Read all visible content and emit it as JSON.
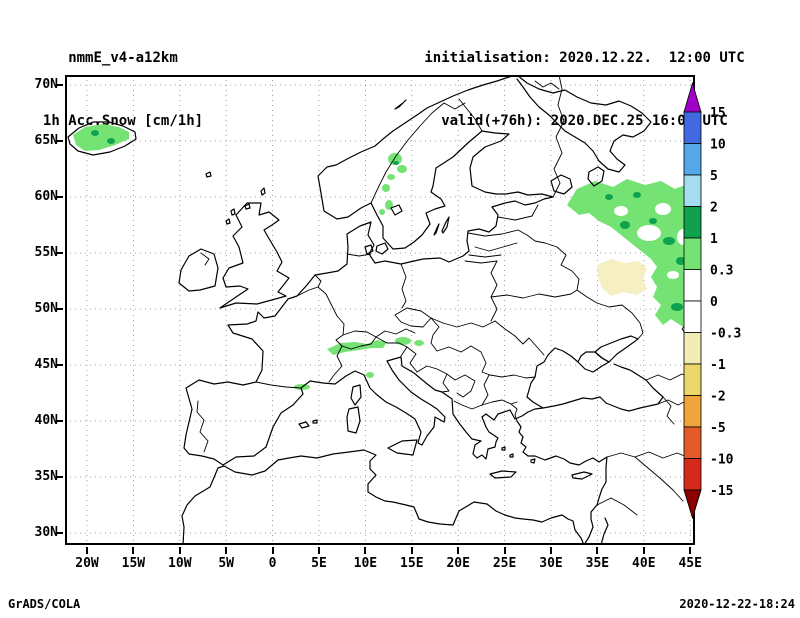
{
  "header": {
    "model": "nmmE_v4-a12km",
    "field": "1h Acc.Snow [cm/1h]",
    "init_line": "initialisation: 2020.12.22.  12:00 UTC",
    "valid_line": "valid(+76h): 2020.DEC.25 16:00 UTC"
  },
  "footer": {
    "left": "GrADS/COLA",
    "right": "2020-12-22-18:24"
  },
  "axes": {
    "lat_ticks": [
      "70N",
      "65N",
      "60N",
      "55N",
      "50N",
      "45N",
      "40N",
      "35N",
      "30N"
    ],
    "lon_ticks": [
      "20W",
      "15W",
      "10W",
      "5W",
      "0",
      "5E",
      "10E",
      "15E",
      "20E",
      "25E",
      "30E",
      "35E",
      "40E",
      "45E"
    ]
  },
  "colorbar": {
    "labels": [
      "15",
      "10",
      "5",
      "2",
      "1",
      "0.3",
      "0",
      "-0.3",
      "-1",
      "-2",
      "-5",
      "-10",
      "-15"
    ],
    "segment_colors": [
      "#4169E1",
      "#55A8E8",
      "#A6DCF2",
      "#0FA14E",
      "#74E374",
      "#FFFFFF",
      "#FFFFFF",
      "#F2EDB6",
      "#EDD76A",
      "#F0A43C",
      "#E55B28",
      "#D42A1C"
    ],
    "arrow_top_color": "#A000C8",
    "arrow_bottom_color": "#8B0000"
  },
  "chart_data": {
    "type": "heatmap",
    "title": "1h Acc.Snow [cm/1h]",
    "subtitle": "nmmE_v4-a12km",
    "projection": "latlon",
    "lon_range": [
      -22.4,
      45.5
    ],
    "lat_range": [
      28.9,
      70.9
    ],
    "lon_tick_labels": [
      "20W",
      "15W",
      "10W",
      "5W",
      "0",
      "5E",
      "10E",
      "15E",
      "20E",
      "25E",
      "30E",
      "35E",
      "40E",
      "45E"
    ],
    "lat_tick_labels": [
      "70N",
      "65N",
      "60N",
      "55N",
      "50N",
      "45N",
      "40N",
      "35N",
      "30N"
    ],
    "units": "cm/1h",
    "levels": [
      -15,
      -10,
      -5,
      -2,
      -1,
      -0.3,
      0,
      0.3,
      1,
      2,
      5,
      10,
      15
    ],
    "grid": "dotted",
    "legend_position": "right-vertical-colorbar",
    "regions": [
      {
        "name": "iceland",
        "approx_lon": [
          -22,
          -15
        ],
        "approx_lat": [
          63.5,
          66.5
        ],
        "value_range": [
          0.3,
          1
        ]
      },
      {
        "name": "scandinavia-mountains",
        "approx_lon": [
          10,
          14.5
        ],
        "approx_lat": [
          59,
          64.5
        ],
        "value_range": [
          0.3,
          1
        ]
      },
      {
        "name": "alps",
        "approx_lon": [
          6,
          15
        ],
        "approx_lat": [
          45.5,
          47.5
        ],
        "value_range": [
          0.3,
          1
        ]
      },
      {
        "name": "pyrenees",
        "approx_lon": [
          0,
          3
        ],
        "approx_lat": [
          42.5,
          43.2
        ],
        "value_range": [
          0.3,
          1
        ]
      },
      {
        "name": "apennines",
        "approx_lon": [
          10,
          11
        ],
        "approx_lat": [
          44,
          44.5
        ],
        "value_range": [
          0.3,
          1
        ]
      },
      {
        "name": "western-russia-large-area",
        "approx_lon": [
          32,
          45.5
        ],
        "approx_lat": [
          49,
          61.5
        ],
        "value_range": [
          0.3,
          2
        ]
      },
      {
        "name": "ukraine-russia-border-patch",
        "approx_lon": [
          34,
          40
        ],
        "approx_lat": [
          51,
          54.5
        ],
        "value_range": [
          -1,
          -0.3
        ]
      }
    ]
  }
}
